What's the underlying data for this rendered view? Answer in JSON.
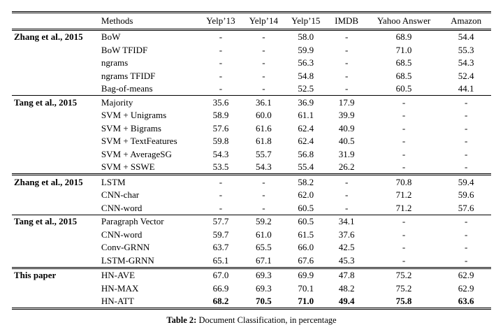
{
  "table": {
    "methods_header": "Methods",
    "columns": [
      "Yelp’13",
      "Yelp’14",
      "Yelp’15",
      "IMDB",
      "Yahoo Answer",
      "Amazon"
    ],
    "groups": [
      {
        "name": "Zhang et al., 2015",
        "rule_after": "single",
        "rows": [
          {
            "method": "BoW",
            "values": [
              "-",
              "-",
              "58.0",
              "-",
              "68.9",
              "54.4"
            ]
          },
          {
            "method": "BoW TFIDF",
            "values": [
              "-",
              "-",
              "59.9",
              "-",
              "71.0",
              "55.3"
            ]
          },
          {
            "method": "ngrams",
            "values": [
              "-",
              "-",
              "56.3",
              "-",
              "68.5",
              "54.3"
            ]
          },
          {
            "method": "ngrams TFIDF",
            "values": [
              "-",
              "-",
              "54.8",
              "-",
              "68.5",
              "52.4"
            ]
          },
          {
            "method": "Bag-of-means",
            "values": [
              "-",
              "-",
              "52.5",
              "-",
              "60.5",
              "44.1"
            ]
          }
        ]
      },
      {
        "name": "Tang et al., 2015",
        "rule_after": "double",
        "rows": [
          {
            "method": "Majority",
            "values": [
              "35.6",
              "36.1",
              "36.9",
              "17.9",
              "-",
              "-"
            ]
          },
          {
            "method": "SVM + Unigrams",
            "values": [
              "58.9",
              "60.0",
              "61.1",
              "39.9",
              "-",
              "-"
            ]
          },
          {
            "method": "SVM + Bigrams",
            "values": [
              "57.6",
              "61.6",
              "62.4",
              "40.9",
              "-",
              "-"
            ]
          },
          {
            "method": "SVM + TextFeatures",
            "values": [
              "59.8",
              "61.8",
              "62.4",
              "40.5",
              "-",
              "-"
            ]
          },
          {
            "method": "SVM + AverageSG",
            "values": [
              "54.3",
              "55.7",
              "56.8",
              "31.9",
              "-",
              "-"
            ]
          },
          {
            "method": "SVM + SSWE",
            "values": [
              "53.5",
              "54.3",
              "55.4",
              "26.2",
              "-",
              "-"
            ]
          }
        ]
      },
      {
        "name": "Zhang et al., 2015",
        "rule_after": "single",
        "rows": [
          {
            "method": "LSTM",
            "values": [
              "-",
              "-",
              "58.2",
              "-",
              "70.8",
              "59.4"
            ]
          },
          {
            "method": "CNN-char",
            "values": [
              "-",
              "-",
              "62.0",
              "-",
              "71.2",
              "59.6"
            ]
          },
          {
            "method": "CNN-word",
            "values": [
              "-",
              "-",
              "60.5",
              "-",
              "71.2",
              "57.6"
            ]
          }
        ]
      },
      {
        "name": "Tang et al., 2015",
        "rule_after": "double",
        "rows": [
          {
            "method": "Paragraph Vector",
            "values": [
              "57.7",
              "59.2",
              "60.5",
              "34.1",
              "-",
              "-"
            ]
          },
          {
            "method": "CNN-word",
            "values": [
              "59.7",
              "61.0",
              "61.5",
              "37.6",
              "-",
              "-"
            ]
          },
          {
            "method": "Conv-GRNN",
            "values": [
              "63.7",
              "65.5",
              "66.0",
              "42.5",
              "-",
              "-"
            ]
          },
          {
            "method": "LSTM-GRNN",
            "values": [
              "65.1",
              "67.1",
              "67.6",
              "45.3",
              "-",
              "-"
            ]
          }
        ]
      },
      {
        "name": "This paper",
        "rule_after": "none",
        "rows": [
          {
            "method": "HN-AVE",
            "values": [
              "67.0",
              "69.3",
              "69.9",
              "47.8",
              "75.2",
              "62.9"
            ]
          },
          {
            "method": "HN-MAX",
            "values": [
              "66.9",
              "69.3",
              "70.1",
              "48.2",
              "75.2",
              "62.9"
            ]
          },
          {
            "method": "HN-ATT",
            "values": [
              "68.2",
              "70.5",
              "71.0",
              "49.4",
              "75.8",
              "63.6"
            ],
            "bold": true
          }
        ]
      }
    ]
  },
  "caption": {
    "label": "Table 2:",
    "text": " Document Classification, in percentage"
  }
}
